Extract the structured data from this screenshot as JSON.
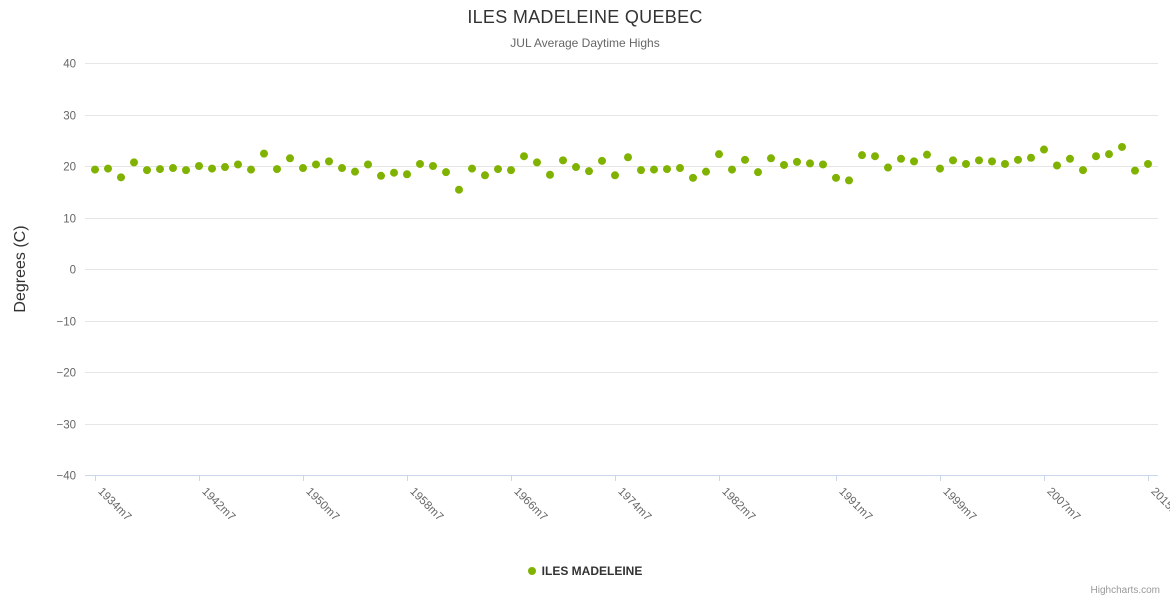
{
  "chart_data": {
    "type": "scatter",
    "title": "ILES MADELEINE QUEBEC",
    "subtitle": "JUL Average Daytime Highs",
    "ylabel": "Degrees (C)",
    "ylim": [
      -40,
      40
    ],
    "ytick_interval": 10,
    "grid": true,
    "legend_position": "bottom",
    "credits": "Highcharts.com",
    "colors": {
      "marker": "#80b300",
      "gridline": "#e6e6e6",
      "axis_line": "#ccd6eb",
      "axis_label": "#666666",
      "title": "#333333",
      "subtitle": "#666666"
    },
    "x_suffix": "m7",
    "x_tick_years": [
      1934,
      1942,
      1950,
      1958,
      1966,
      1974,
      1982,
      1991,
      1999,
      2007,
      2015
    ],
    "x": [
      1934,
      1935,
      1936,
      1937,
      1938,
      1939,
      1940,
      1941,
      1942,
      1943,
      1944,
      1945,
      1946,
      1947,
      1948,
      1949,
      1950,
      1951,
      1952,
      1953,
      1954,
      1955,
      1956,
      1957,
      1958,
      1959,
      1960,
      1961,
      1962,
      1963,
      1964,
      1965,
      1966,
      1967,
      1968,
      1969,
      1970,
      1971,
      1972,
      1973,
      1974,
      1975,
      1976,
      1977,
      1978,
      1979,
      1980,
      1981,
      1982,
      1983,
      1984,
      1985,
      1986,
      1987,
      1988,
      1989,
      1990,
      1991,
      1992,
      1993,
      1994,
      1995,
      1996,
      1997,
      1998,
      1999,
      2000,
      2001,
      2002,
      2003,
      2004,
      2005,
      2006,
      2007,
      2008,
      2009,
      2010,
      2011,
      2012,
      2013,
      2014,
      2015
    ],
    "series": [
      {
        "name": "ILES MADELEINE",
        "color": "#80b300",
        "values": [
          19.3,
          19.5,
          17.8,
          20.7,
          19.2,
          19.4,
          19.6,
          19.2,
          20.0,
          19.5,
          19.8,
          20.3,
          19.3,
          22.4,
          19.4,
          21.5,
          19.6,
          20.3,
          20.9,
          19.6,
          18.9,
          20.3,
          18.1,
          18.7,
          18.4,
          20.4,
          20.0,
          18.8,
          15.4,
          19.5,
          18.2,
          19.4,
          19.2,
          21.9,
          20.7,
          18.3,
          21.1,
          19.8,
          19.0,
          21.0,
          18.2,
          21.7,
          19.2,
          19.3,
          19.4,
          19.6,
          17.7,
          18.9,
          22.3,
          19.3,
          21.2,
          18.8,
          21.5,
          20.2,
          20.8,
          20.5,
          20.3,
          17.7,
          17.2,
          22.1,
          21.9,
          19.7,
          21.4,
          20.9,
          22.2,
          19.5,
          21.1,
          20.4,
          21.1,
          20.9,
          20.4,
          21.2,
          21.6,
          23.2,
          20.1,
          21.4,
          19.2,
          21.9,
          22.3,
          23.7,
          19.1,
          20.4
        ]
      }
    ]
  }
}
